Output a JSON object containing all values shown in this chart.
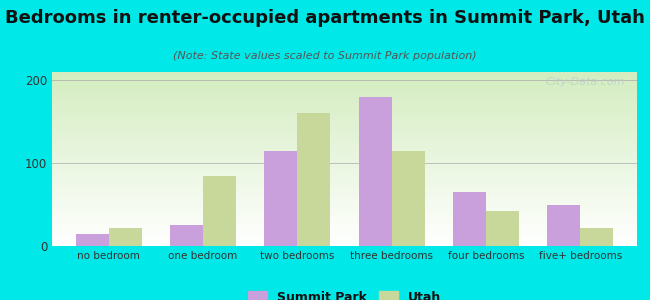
{
  "categories": [
    "no bedroom",
    "one bedroom",
    "two bedrooms",
    "three bedrooms",
    "four bedrooms",
    "five+ bedrooms"
  ],
  "summit_park": [
    15,
    25,
    115,
    180,
    65,
    50
  ],
  "utah": [
    22,
    85,
    160,
    115,
    42,
    22
  ],
  "summit_park_color": "#c9a0dc",
  "utah_color": "#c8d89a",
  "title": "Bedrooms in renter-occupied apartments in Summit Park, Utah",
  "subtitle": "(Note: State values scaled to Summit Park population)",
  "legend_labels": [
    "Summit Park",
    "Utah"
  ],
  "ylim": [
    0,
    210
  ],
  "yticks": [
    0,
    100,
    200
  ],
  "background_color": "#00e8e8",
  "watermark": "City-Data.com",
  "bar_width": 0.35,
  "title_fontsize": 13,
  "subtitle_fontsize": 8
}
